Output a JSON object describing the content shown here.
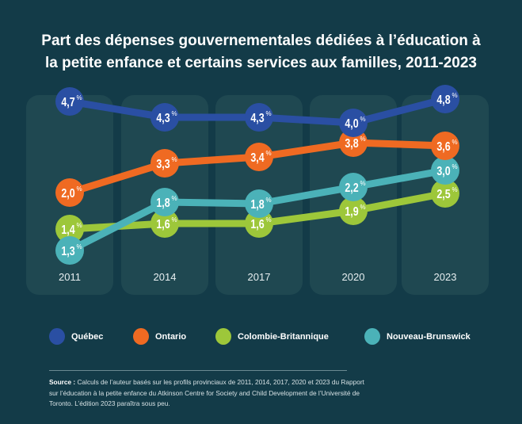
{
  "chart_data": {
    "type": "line",
    "title": "Part des dépenses gouvernementales dédiées à l’éducation à la petite enfance et certains services aux familles, 2011-2023",
    "title_lines": [
      "Part des dépenses gouvernementales dédiées à l’éducation à",
      "la petite enfance et certains services aux familles, 2011-2023"
    ],
    "xlabel": "",
    "ylabel": "",
    "x": [
      "2011",
      "2014",
      "2017",
      "2020",
      "2023"
    ],
    "unit": "%",
    "decimal_separator": ",",
    "grid": false,
    "legend_position": "bottom",
    "series": [
      {
        "name": "Québec",
        "color": "#2a4fa3",
        "values": [
          4.7,
          4.3,
          4.3,
          4.0,
          4.8
        ]
      },
      {
        "name": "Ontario",
        "color": "#ef6a22",
        "values": [
          2.0,
          3.3,
          3.4,
          3.8,
          3.6
        ]
      },
      {
        "name": "Colombie-Britannique",
        "color": "#9dc73a",
        "values": [
          1.4,
          1.6,
          1.6,
          1.9,
          2.5
        ]
      },
      {
        "name": "Nouveau-Brunswick",
        "color": "#4bb2b8",
        "values": [
          1.3,
          1.8,
          1.8,
          2.2,
          3.0
        ]
      }
    ]
  },
  "legend": [
    {
      "label": "Québec",
      "color": "#2a4fa3"
    },
    {
      "label": "Ontario",
      "color": "#ef6a22"
    },
    {
      "label": "Colombie-Britannique",
      "color": "#9dc73a"
    },
    {
      "label": "Nouveau-Brunswick",
      "color": "#4bb2b8"
    }
  ],
  "source": {
    "label": "Source :",
    "text": "Calculs de l’auteur basés sur les profils provinciaux de 2011, 2014, 2017, 2020 et 2023 du Rapport sur l’éducation à la petite enfance du Atkinson Centre for Society and Child Development de l’Université de Toronto. L’édition 2023 paraîtra sous peu."
  },
  "colors": {
    "background": "#133b48",
    "panel": "#1f4851",
    "year_label": "#e6eef0"
  }
}
